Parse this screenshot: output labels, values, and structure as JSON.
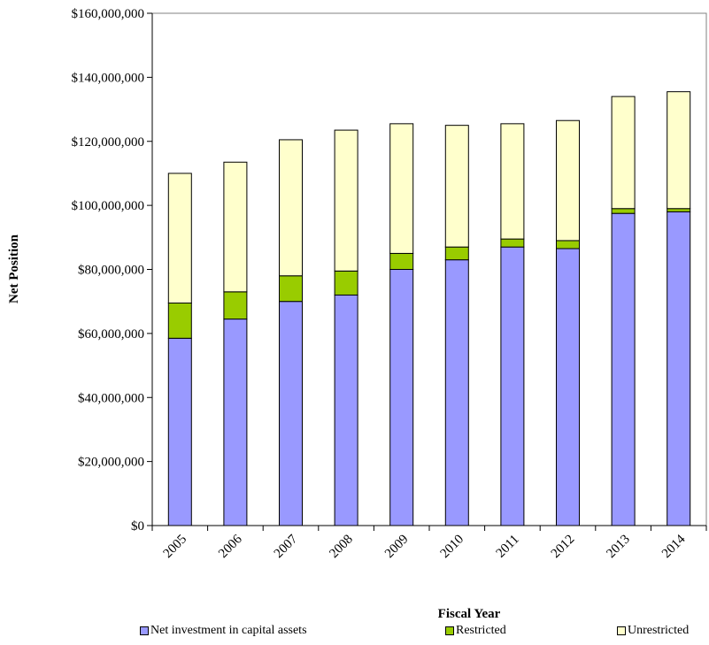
{
  "chart_data": {
    "type": "bar",
    "stacked": true,
    "title": "",
    "xlabel": "Fiscal Year",
    "ylabel": "Net  Position",
    "ylim": [
      0,
      160000000
    ],
    "yticks": [
      0,
      20000000,
      40000000,
      60000000,
      80000000,
      100000000,
      120000000,
      140000000,
      160000000
    ],
    "ytick_labels": [
      "$0",
      "$20,000,000",
      "$40,000,000",
      "$60,000,000",
      "$80,000,000",
      "$100,000,000",
      "$120,000,000",
      "$140,000,000",
      "$160,000,000"
    ],
    "categories": [
      "2005",
      "2006",
      "2007",
      "2008",
      "2009",
      "2010",
      "2011",
      "2012",
      "2013",
      "2014"
    ],
    "grid": false,
    "legend_position": "bottom",
    "series": [
      {
        "name": "Net investment in capital assets",
        "color": "#9999ff",
        "values": [
          58500000,
          64500000,
          70000000,
          72000000,
          80000000,
          83000000,
          87000000,
          86500000,
          97500000,
          98000000
        ]
      },
      {
        "name": "Restricted",
        "color": "#99cc00",
        "values": [
          11000000,
          8500000,
          8000000,
          7500000,
          5000000,
          4000000,
          2500000,
          2500000,
          1500000,
          1000000
        ]
      },
      {
        "name": "Unrestricted",
        "color": "#ffffcc",
        "values": [
          40500000,
          40500000,
          42500000,
          44000000,
          40500000,
          38000000,
          36000000,
          37500000,
          35000000,
          36500000
        ]
      }
    ]
  }
}
